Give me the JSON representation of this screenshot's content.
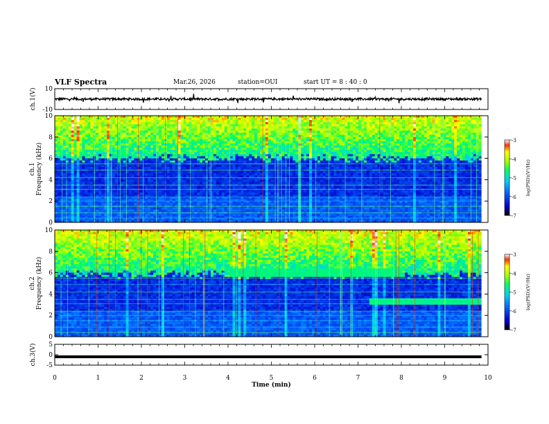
{
  "header": {
    "title": "VLF Spectra",
    "date": "Mar.26, 2026",
    "station": "station=OUI",
    "start": "start UT =  8 : 40 : 0"
  },
  "chart_data": [
    {
      "type": "line",
      "ylabel": "ch.1(V)",
      "ylim": [
        -10,
        10
      ],
      "yticks": [
        "10",
        "-10"
      ],
      "description_mean": 0,
      "xlim": [
        0,
        10
      ]
    },
    {
      "type": "heatmap",
      "ylabel_line1": "ch.1",
      "ylabel_line2": "Frequency (kHz)",
      "ylim": [
        0,
        10
      ],
      "yticks": [
        "0",
        "2",
        "4",
        "6",
        "8",
        "10"
      ],
      "xlim": [
        0,
        10
      ],
      "colorbar": {
        "label": "log(PSD)(V²/Hz)",
        "range": [
          -7,
          -3
        ],
        "ticks": [
          "-3",
          "-4",
          "-5",
          "-6",
          "-7"
        ]
      },
      "cutoff_khz": 6.0
    },
    {
      "type": "heatmap",
      "ylabel_line1": "ch.2",
      "ylabel_line2": "Frequency (kHz)",
      "ylim": [
        0,
        10
      ],
      "yticks": [
        "0",
        "2",
        "4",
        "6",
        "8",
        "10"
      ],
      "xlim": [
        0,
        10
      ],
      "colorbar": {
        "label": "log(PSD)(V²/Hz)",
        "range": [
          -7,
          -3
        ],
        "ticks": [
          "-3",
          "-4",
          "-5",
          "-6",
          "-7"
        ]
      },
      "cutoff_khz": 5.8,
      "band_events": [
        {
          "t_start": 4.0,
          "t_end": 8.0,
          "freq_khz": 6.0
        },
        {
          "t_start": 7.2,
          "t_end": 9.8,
          "freq_khz": 3.3
        }
      ]
    },
    {
      "type": "line",
      "ylabel": "ch.3(V)",
      "ylim": [
        -5,
        5
      ],
      "yticks": [
        "5",
        "0",
        "-5"
      ],
      "value": -1,
      "xlim": [
        0,
        10
      ]
    }
  ],
  "xaxis": {
    "label": "Time (min)",
    "ticks": [
      "0",
      "1",
      "2",
      "3",
      "4",
      "5",
      "6",
      "7",
      "8",
      "9",
      "10"
    ]
  }
}
